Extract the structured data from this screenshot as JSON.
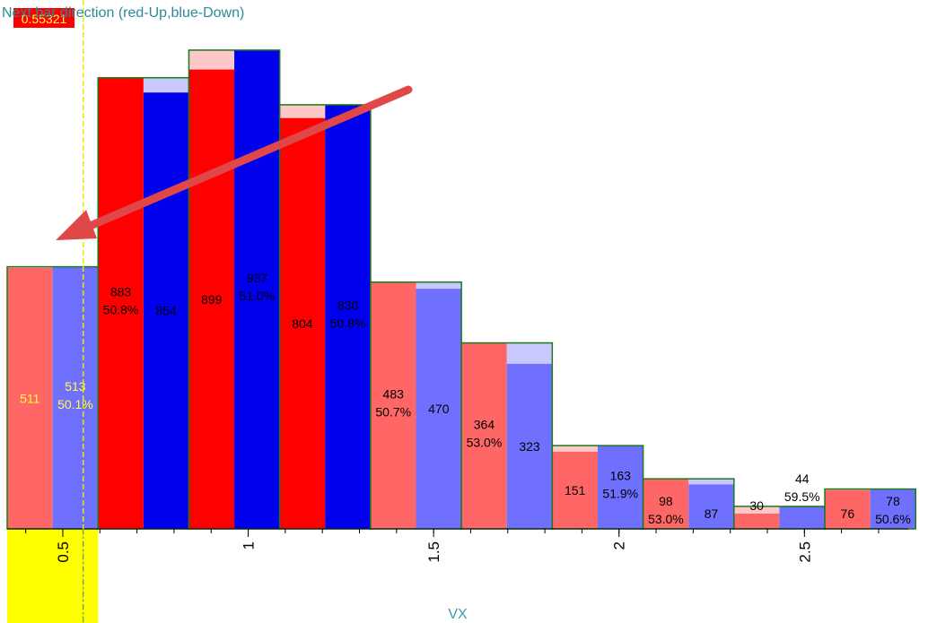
{
  "chart_data": {
    "type": "bar",
    "title": "Next bar direction (red-Up,blue-Down)",
    "xlabel": "VX",
    "ylabel": "",
    "xlim": [
      0.35,
      2.78
    ],
    "ylim": [
      0,
      1000
    ],
    "x_ticks": [
      "0.5",
      "1",
      "1.5",
      "2",
      "2.5"
    ],
    "cursor_readout": "0.55321",
    "cursor_x": 0.555,
    "highlight_range": [
      0.35,
      0.595
    ],
    "bin_width": 0.245,
    "bins": [
      {
        "x0": 0.35,
        "up": 511,
        "down": 513,
        "percent": "50.1%",
        "pct_side": "down"
      },
      {
        "x0": 0.595,
        "up": 883,
        "down": 854,
        "percent": "50.8%",
        "pct_side": "up"
      },
      {
        "x0": 0.84,
        "up": 899,
        "down": 937,
        "percent": "51.0%",
        "pct_side": "down"
      },
      {
        "x0": 1.085,
        "up": 804,
        "down": 830,
        "percent": "50.8%",
        "pct_side": "down"
      },
      {
        "x0": 1.33,
        "up": 483,
        "down": 470,
        "percent": "50.7%",
        "pct_side": "up"
      },
      {
        "x0": 1.575,
        "up": 364,
        "down": 323,
        "percent": "53.0%",
        "pct_side": "up"
      },
      {
        "x0": 1.82,
        "up": 151,
        "down": 163,
        "percent": "51.9%",
        "pct_side": "down"
      },
      {
        "x0": 2.065,
        "up": 98,
        "down": 87,
        "percent": "53.0%",
        "pct_side": "up"
      },
      {
        "x0": 2.31,
        "up": 30,
        "down": 44,
        "percent": "59.5%",
        "pct_side": "down"
      },
      {
        "x0": 2.555,
        "up": 76,
        "down": 78,
        "percent": "50.6%",
        "pct_side": "down"
      }
    ],
    "colors": {
      "up_strong": "#ff0000",
      "down_strong": "#0000ee",
      "up_weak": "#ff6666",
      "down_weak": "#7070ff",
      "up_pale": "#ffc8c8",
      "down_pale": "#c8c8ff",
      "outline": "#1a7a1a",
      "highlight": "#ffff00",
      "arrow": "#e04848",
      "readout_bg": "#ff0000"
    }
  }
}
